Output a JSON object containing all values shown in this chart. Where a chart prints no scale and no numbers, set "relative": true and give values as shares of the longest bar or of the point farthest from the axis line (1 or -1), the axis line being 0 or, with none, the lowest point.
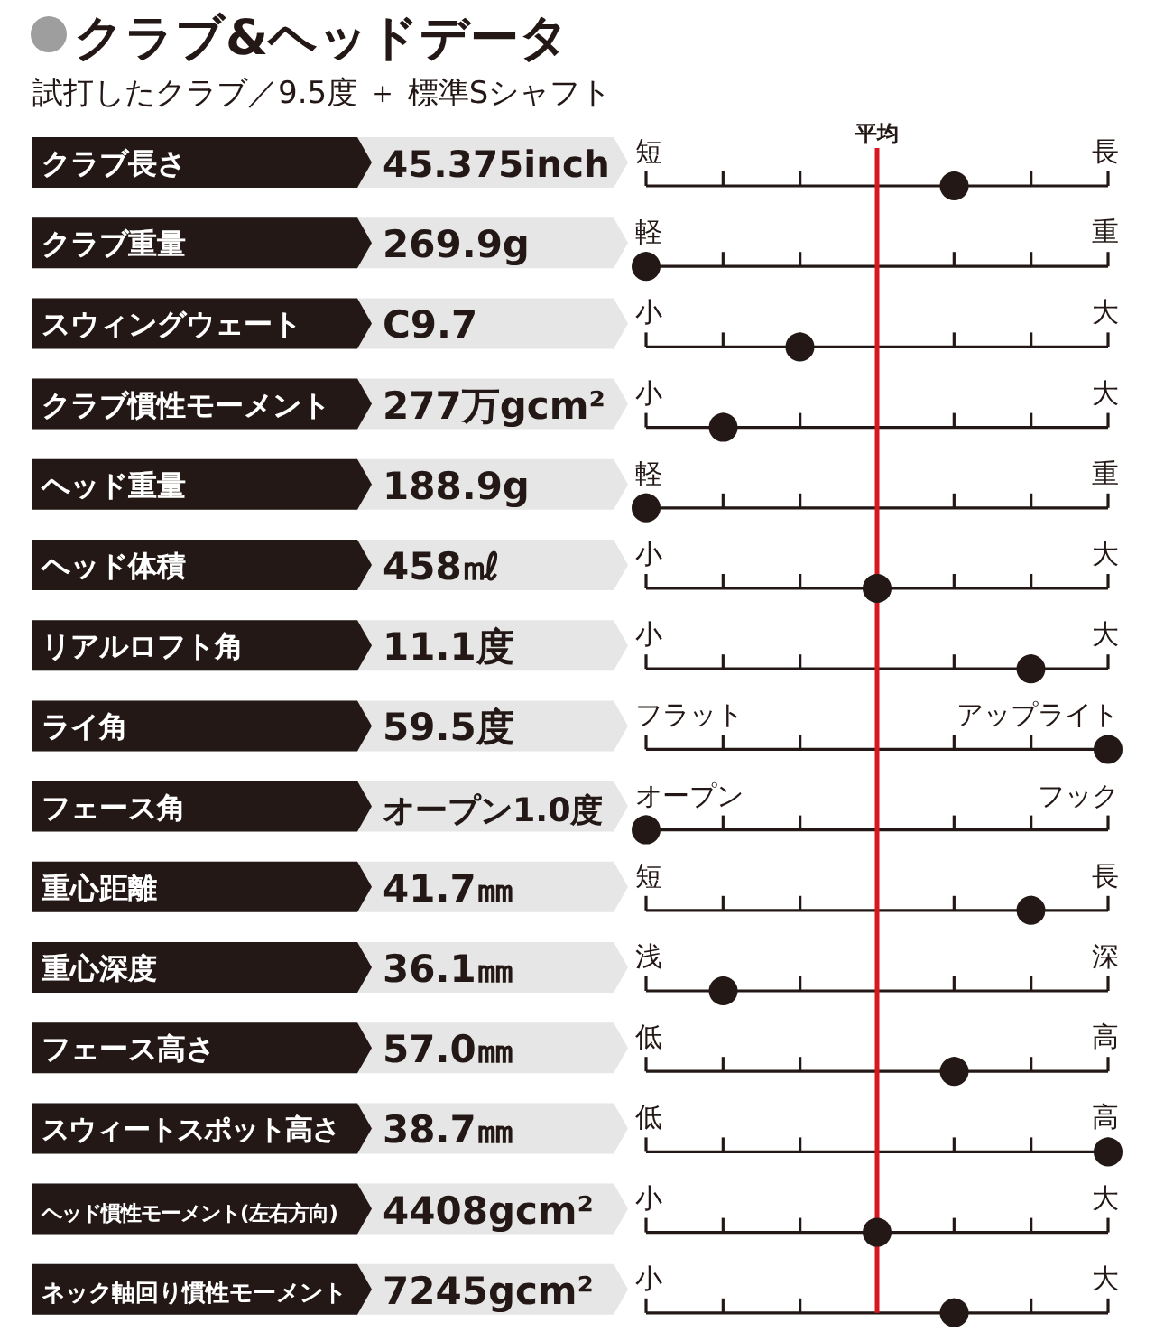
{
  "chart_data": {
    "type": "scatter",
    "relative": true,
    "orientation": "horizontal",
    "marker": "circle",
    "color": "#231815",
    "title": "クラブ&ヘッドデータ",
    "subtitle": "試打したクラブ／9.5度 ＋ 標準Sシャフト",
    "categories": [
      "クラブ長さ",
      "クラブ重量",
      "スウィングウェート",
      "クラブ慣性モーメント",
      "ヘッド重量",
      "ヘッド体積",
      "リアルロフト角",
      "ライ角",
      "フェース角",
      "重心距離",
      "重心深度",
      "フェース高さ",
      "スウィートスポット高さ",
      "ヘッド慣性モーメント(左右方向)",
      "ネック軸回り慣性モーメント"
    ],
    "values": [
      0.667,
      0,
      0.333,
      0.167,
      0,
      0.5,
      0.833,
      1,
      0,
      0.833,
      0.167,
      0.667,
      1,
      0.5,
      0.667
    ],
    "ref_lines": [
      {
        "axis": "x",
        "value": 0.5,
        "label": "平均",
        "color": "#d7191f"
      }
    ],
    "annotations": [
      "45.375inch",
      "短",
      "長",
      "269.9g",
      "軽",
      "重",
      "C9.7",
      "小",
      "大",
      "277万gcm²",
      "小",
      "大",
      "188.9g",
      "軽",
      "重",
      "458㎖",
      "小",
      "大",
      "11.1度",
      "小",
      "大",
      "59.5度",
      "フラット",
      "アップライト",
      "オープン1.0度",
      "オープン",
      "フック",
      "41.7㎜",
      "短",
      "長",
      "36.1㎜",
      "浅",
      "深",
      "57.0㎜",
      "低",
      "高",
      "38.7㎜",
      "低",
      "高",
      "4408gcm²",
      "小",
      "大",
      "7245gcm²",
      "小",
      "大"
    ]
  }
}
